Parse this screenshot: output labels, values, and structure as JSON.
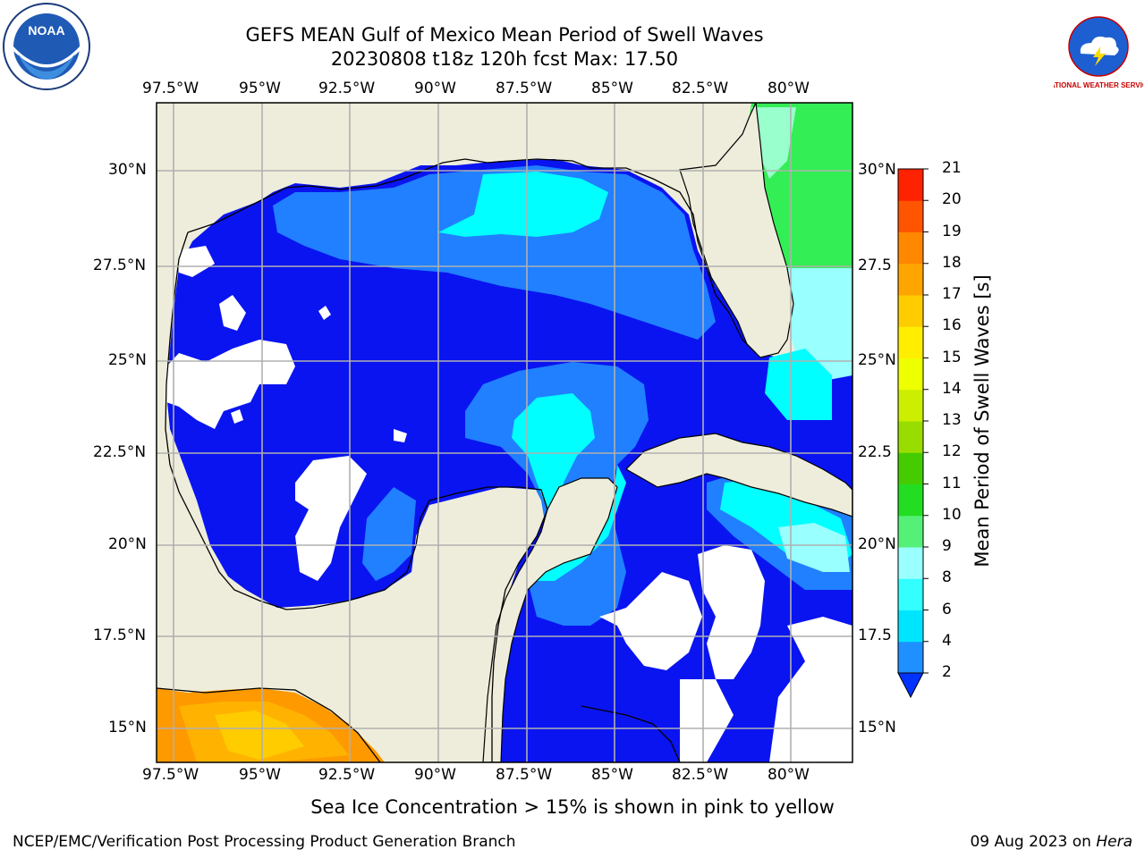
{
  "title": {
    "line1": "GEFS MEAN Gulf of Mexico Mean Period of Swell Waves",
    "line2": "20230808 t18z 120h fcst   Max: 17.50"
  },
  "axes": {
    "lon_ticks": [
      "97.5°W",
      "95°W",
      "92.5°W",
      "90°W",
      "87.5°W",
      "85°W",
      "82.5°W",
      "80°W"
    ],
    "lat_ticks_left": [
      "30°N",
      "27.5°N",
      "25°N",
      "22.5°N",
      "20°N",
      "17.5°N",
      "15°N"
    ],
    "lat_ticks_right": [
      "30°N",
      "27.5",
      "25°N",
      "22.5",
      "20°N",
      "17.5",
      "15°N"
    ]
  },
  "colorbar": {
    "label": "Mean Period of Swell Waves [s]",
    "ticks": [
      "2",
      "4",
      "6",
      "8",
      "9",
      "10",
      "11",
      "12",
      "13",
      "14",
      "15",
      "16",
      "17",
      "18",
      "19",
      "20",
      "21"
    ],
    "colors": [
      "#0033ff",
      "#1e90ff",
      "#00e5ff",
      "#33ffff",
      "#99ffff",
      "#55f077",
      "#22dd22",
      "#44cc00",
      "#99dd00",
      "#ccee00",
      "#eeff00",
      "#ffee00",
      "#ffcc00",
      "#ffa500",
      "#ff8800",
      "#ff5500",
      "#ff2200",
      "#ff0000"
    ]
  },
  "note": "Sea Ice Concentration > 15% is shown in pink to yellow",
  "footer": {
    "left": "NCEP/EMC/Verification Post Processing Product Generation Branch",
    "date": "09 Aug 2023 on ",
    "host": "Hera"
  },
  "logos": {
    "noaa_text": "NOAA",
    "nws_text": "NATIONAL WEATHER SERVICE"
  },
  "map": {
    "lon_range": [
      -98.5,
      -78.5
    ],
    "lat_range": [
      14.1,
      31.8
    ],
    "grid": true,
    "colors": {
      "land": "#eeeddb",
      "ocean_low": "#0a14f0",
      "swell_4": "#2080ff",
      "swell_6": "#00ffff",
      "swell_9": "#66ffaa",
      "swell_10": "#33ee55"
    }
  }
}
